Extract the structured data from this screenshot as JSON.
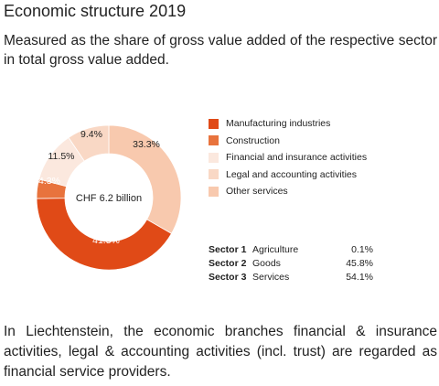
{
  "title": "Economic structure 2019",
  "subtitle": "Measured as the share of gross value added of the respective sector in total gross value added.",
  "chart_data": {
    "type": "pie",
    "variant": "donut",
    "center_label": "CHF 6.2 billion",
    "slices": [
      {
        "name": "Manufacturing industries",
        "value": 41.5,
        "label": "41.5%",
        "color": "#e04a17"
      },
      {
        "name": "Construction",
        "value": 4.3,
        "label": "4.3%",
        "color": "#e8733d"
      },
      {
        "name": "Financial and insurance activities",
        "value": 11.5,
        "label": "11.5%",
        "color": "#fbe8de"
      },
      {
        "name": "Legal and accounting activities",
        "value": 9.4,
        "label": "9.4%",
        "color": "#f9d8c5"
      },
      {
        "name": "Other services",
        "value": 33.3,
        "label": "33.3%",
        "color": "#f8c9ae"
      }
    ],
    "legend": [
      "Manufacturing industries",
      "Construction",
      "Financial and insurance activities",
      "Legal and accounting activities",
      "Other services"
    ]
  },
  "sectors": [
    {
      "key": "Sector 1",
      "name": "Agriculture",
      "value": "0.1%"
    },
    {
      "key": "Sector 2",
      "name": "Goods",
      "value": "45.8%"
    },
    {
      "key": "Sector 3",
      "name": "Services",
      "value": "54.1%"
    }
  ],
  "note": "In Liechtenstein, the economic branches financial & insurance activities, legal & accounting activities (incl. trust) are regarded as financial service providers."
}
